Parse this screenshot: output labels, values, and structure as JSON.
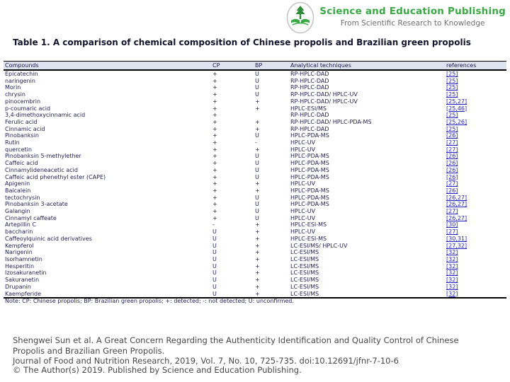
{
  "logo": {
    "name": "Science and Education Publishing",
    "tagline": "From Scientific Research to Knowledge",
    "brand_green": "#3aa845",
    "tagline_gray": "#6e6e6e"
  },
  "title": "Table 1. A comparison of chemical composition of Chinese propolis and Brazilian green propolis",
  "table": {
    "headers": [
      "Compounds",
      "CP",
      "BP",
      "Analytical techniques",
      "references"
    ],
    "header_bg": "#dde4ef",
    "text_color": "#1e1e52",
    "link_color": "#1f1fbf",
    "rows": [
      {
        "compound": "Epicatechin",
        "cp": "+",
        "bp": "U",
        "technique": "RP-HPLC-DAD",
        "ref": "[25]"
      },
      {
        "compound": "naringenin",
        "cp": "+",
        "bp": "U",
        "technique": "RP-HPLC-DAD",
        "ref": "[25]"
      },
      {
        "compound": "Morin",
        "cp": "+",
        "bp": "U",
        "technique": "RP-HPLC-DAD",
        "ref": "[25]"
      },
      {
        "compound": "chrysin",
        "cp": "+",
        "bp": "U",
        "technique": "RP-HPLC-DAD/ HPLC-UV",
        "ref": "[25]"
      },
      {
        "compound": "pinocembrin",
        "cp": "+",
        "bp": "+",
        "technique": "RP-HPLC-DAD/ HPLC-UV",
        "ref": "[25,27]"
      },
      {
        "compound": "p-coumaric acid",
        "cp": "+",
        "bp": "+",
        "technique": "HPLC-ESI/MS",
        "ref": "[25,46]"
      },
      {
        "compound": "3,4-dimethoxycinnamic acid",
        "cp": "+",
        "bp": "",
        "technique": "RP-HPLC-DAD",
        "ref": "[25]"
      },
      {
        "compound": "Ferulic acid",
        "cp": "+",
        "bp": "+",
        "technique": "RP-HPLC-DAD/ HPLC-PDA-MS",
        "ref": "[25,26]"
      },
      {
        "compound": "Cinnamic acid",
        "cp": "+",
        "bp": "+",
        "technique": "RP-HPLC-DAD",
        "ref": "[25]"
      },
      {
        "compound": "Pinobanksin",
        "cp": "+",
        "bp": "U",
        "technique": "HPLC-PDA-MS",
        "ref": "[26]"
      },
      {
        "compound": "Rutin",
        "cp": "+",
        "bp": "-",
        "technique": "HPLC-UV",
        "ref": "[27]"
      },
      {
        "compound": "quercetin",
        "cp": "+",
        "bp": "+",
        "technique": "HPLC-UV",
        "ref": "[27]"
      },
      {
        "compound": "Pinobanksin 5-methylether",
        "cp": "+",
        "bp": "U",
        "technique": "HPLC-PDA-MS",
        "ref": "[26]"
      },
      {
        "compound": "Caffeic acid",
        "cp": "+",
        "bp": "U",
        "technique": "HPLC-PDA-MS",
        "ref": "[26]"
      },
      {
        "compound": "Cinnamylideneacetic acid",
        "cp": "+",
        "bp": "U",
        "technique": "HPLC-PDA-MS",
        "ref": "[26]"
      },
      {
        "compound": "Caffeic acid phenethyl ester (CAPE)",
        "cp": "+",
        "bp": "U",
        "technique": "HPLC-PDA-MS",
        "ref": "[26]"
      },
      {
        "compound": "Apigenin",
        "cp": "+",
        "bp": "+",
        "technique": "HPLC-UV",
        "ref": "[27]"
      },
      {
        "compound": "Baicalein",
        "cp": "+",
        "bp": "+",
        "technique": "HPLC-PDA-MS",
        "ref": "[26]"
      },
      {
        "compound": "tectochrysin",
        "cp": "+",
        "bp": "U",
        "technique": "HPLC-PDA-MS",
        "ref": "[26,27]"
      },
      {
        "compound": "Pinobanksin 3-acetate",
        "cp": "+",
        "bp": "U",
        "technique": "HPLC-PDA-MS",
        "ref": "[26,27]"
      },
      {
        "compound": "Galangin",
        "cp": "+",
        "bp": "U",
        "technique": "HPLC-UV",
        "ref": "[27]"
      },
      {
        "compound": "Cinnamyl caffeate",
        "cp": "+",
        "bp": "U",
        "technique": "HPLC-UV",
        "ref": "[26,27]"
      },
      {
        "compound": "Artepillin C",
        "cp": "-",
        "bp": "+",
        "technique": "HPLC-ESI-MS",
        "ref": "[30]"
      },
      {
        "compound": "baccharin",
        "cp": "U",
        "bp": "+",
        "technique": "HPLC-UV",
        "ref": "[27]"
      },
      {
        "compound": "Caffeoylquinic acid derivatives",
        "cp": "U",
        "bp": "+",
        "technique": "HPLC-ESI-MS",
        "ref": "[30,31]"
      },
      {
        "compound": "Kempferol",
        "cp": "U",
        "bp": "+",
        "technique": "LC-ESI/MS/ HPLC-UV",
        "ref": "[27,32]"
      },
      {
        "compound": "Narigenin",
        "cp": "U",
        "bp": "+",
        "technique": "LC-ESI/MS",
        "ref": "[32]"
      },
      {
        "compound": "Isorhamnetin",
        "cp": "U",
        "bp": "+",
        "technique": "LC-ESI/MS",
        "ref": "[32]"
      },
      {
        "compound": "Hesperitin",
        "cp": "U",
        "bp": "+",
        "technique": "LC-ESI/MS",
        "ref": "[32]"
      },
      {
        "compound": "Izosakuranetin",
        "cp": "U",
        "bp": "+",
        "technique": "LC-ESI/MS",
        "ref": "[32]"
      },
      {
        "compound": "Sakuranetin",
        "cp": "U",
        "bp": "+",
        "technique": "LC-ESI/MS",
        "ref": "[32]"
      },
      {
        "compound": "Drupanin",
        "cp": "U",
        "bp": "+",
        "technique": "LC-ESI/MS",
        "ref": "[32]"
      },
      {
        "compound": "Kaempferide",
        "cp": "U",
        "bp": "+",
        "technique": "LC-ESI/MS",
        "ref": "[32]"
      }
    ]
  },
  "note": "Note: CP: Chinese propolis; BP: Brazilian green propolis; +: detected; -: not detected; U: unconfirmed.",
  "citation": {
    "line1": "Shengwei Sun et al. A Great Concern Regarding the Authenticity Identification and Quality Control of Chinese Propolis and Brazilian Green Propolis.",
    "line2": "Journal of Food and Nutrition Research, 2019, Vol. 7, No. 10, 725-735. doi:10.12691/jfnr-7-10-6"
  },
  "copyright": "© The Author(s) 2019. Published by Science and Education Publishing."
}
